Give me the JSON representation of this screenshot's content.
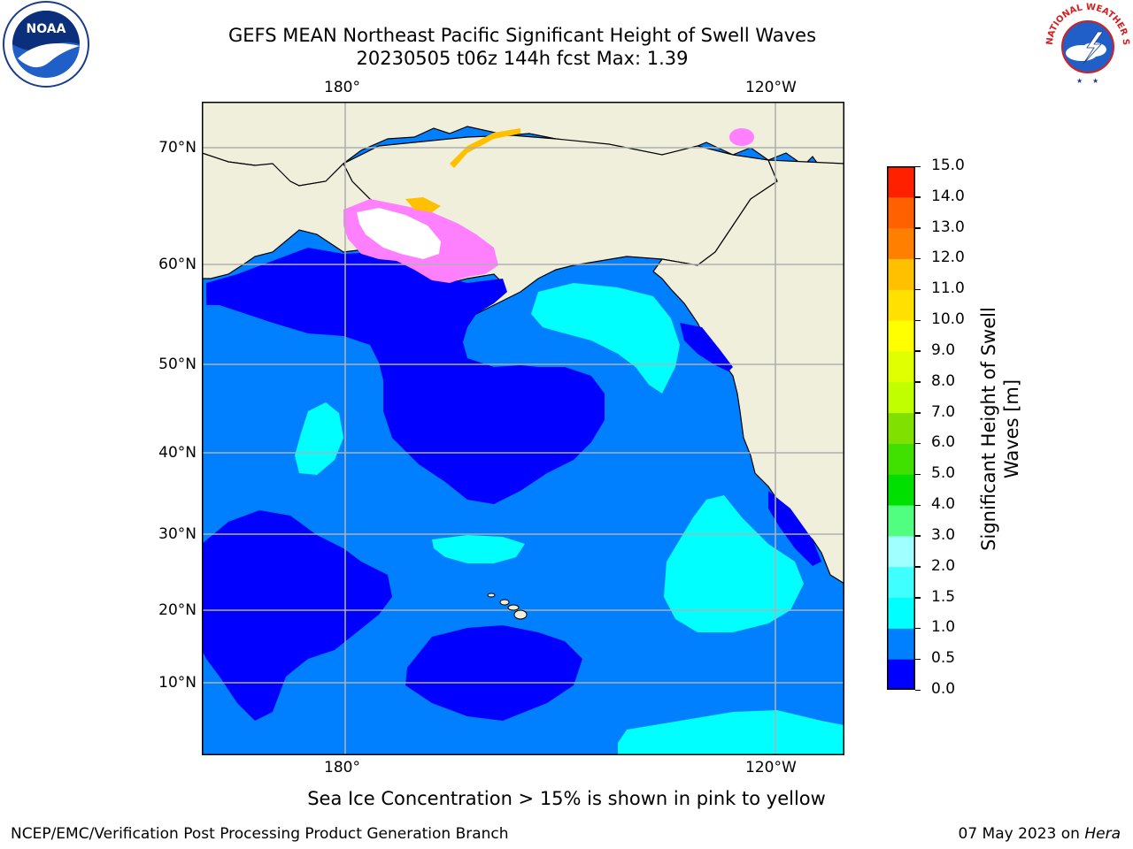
{
  "header": {
    "title": "GEFS MEAN Northeast Pacific Significant Height of Swell Waves",
    "subtitle": "20230505 t06z 144h fcst   Max: 1.39"
  },
  "logos": {
    "left": {
      "text": "NOAA"
    },
    "right": {
      "text": "NATIONAL WEATHER SERVICE"
    }
  },
  "map": {
    "lon_labels": [
      "180°",
      "120°W"
    ],
    "lat_labels": [
      "70°N",
      "60°N",
      "50°N",
      "40°N",
      "30°N",
      "20°N",
      "10°N"
    ],
    "colors": {
      "ocean_dark": "#0000ff",
      "ocean_mid": "#0080ff",
      "ocean_light": "#00ffff",
      "land": "#efefdc",
      "ice_pink": "#ff80ff",
      "ice_yellow": "#ffc000",
      "grid": "#b0b0b0"
    }
  },
  "colorbar": {
    "label": "Significant Height of Swell Waves [m]",
    "ticks": [
      "0.0",
      "0.5",
      "1.0",
      "1.5",
      "2.0",
      "3.0",
      "4.0",
      "5.0",
      "6.0",
      "7.0",
      "8.0",
      "9.0",
      "10.0",
      "11.0",
      "12.0",
      "13.0",
      "14.0",
      "15.0"
    ],
    "colors": [
      "#0000ff",
      "#0080ff",
      "#00ffff",
      "#40ffff",
      "#a0ffff",
      "#50ff80",
      "#00e000",
      "#40e000",
      "#80e000",
      "#c0ff00",
      "#e0ff00",
      "#ffff00",
      "#ffe000",
      "#ffc000",
      "#ff8000",
      "#ff6000",
      "#ff2000"
    ]
  },
  "note": "Sea Ice Concentration > 15% is shown in pink to yellow",
  "footer": {
    "left": "NCEP/EMC/Verification Post Processing Product Generation Branch",
    "right_date": "07 May 2023 on",
    "right_host": "Hera"
  }
}
